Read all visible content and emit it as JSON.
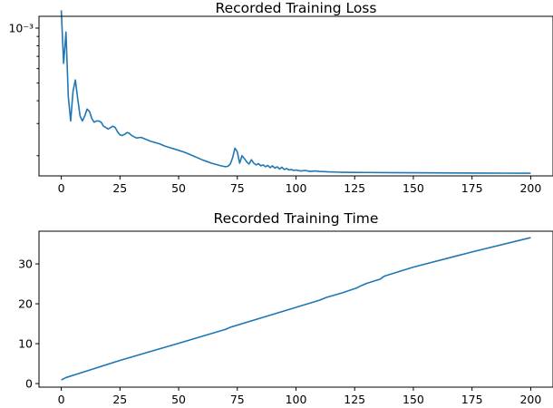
{
  "chart_data": [
    {
      "type": "line",
      "title": "Recorded Training Loss",
      "xlabel": "",
      "ylabel": "",
      "yscale": "log",
      "xlim": [
        -9.5,
        209.5
      ],
      "ylim": [
        0.000155,
        0.00116
      ],
      "grid": false,
      "color": "#1f77b4",
      "x_ticks": [
        0,
        25,
        50,
        75,
        100,
        125,
        150,
        175,
        200
      ],
      "x_tick_labels": [
        "0",
        "25",
        "50",
        "75",
        "100",
        "125",
        "150",
        "175",
        "200"
      ],
      "y_major_ticks": [
        0.001
      ],
      "y_major_tick_labels": [
        "10⁻³"
      ],
      "y_minor_ticks": [
        0.0002,
        0.0003,
        0.0004,
        0.0005,
        0.0006,
        0.0007,
        0.0008,
        0.0009
      ],
      "series": [
        {
          "x": [
            0,
            1,
            2,
            3,
            4,
            5,
            6,
            7,
            8,
            9,
            10,
            11,
            12,
            13,
            14,
            15,
            16,
            17,
            18,
            19,
            20,
            21,
            22,
            23,
            24,
            25,
            26,
            27,
            28,
            29,
            30,
            32,
            34,
            36,
            38,
            40,
            42,
            44,
            46,
            48,
            50,
            52,
            54,
            56,
            58,
            60,
            62,
            64,
            66,
            68,
            70,
            71,
            72,
            73,
            74,
            75,
            76,
            77,
            78,
            79,
            80,
            81,
            82,
            83,
            84,
            85,
            86,
            87,
            88,
            89,
            90,
            91,
            92,
            93,
            94,
            95,
            96,
            97,
            98,
            99,
            100,
            102,
            104,
            106,
            108,
            110,
            112,
            114,
            116,
            118,
            120,
            125,
            130,
            140,
            150,
            160,
            170,
            180,
            190,
            200
          ],
          "y": [
            0.00125,
            0.00064,
            0.00095,
            0.00042,
            0.00031,
            0.00045,
            0.00052,
            0.00041,
            0.00033,
            0.00031,
            0.00033,
            0.00036,
            0.00035,
            0.00032,
            0.000305,
            0.00031,
            0.00031,
            0.000305,
            0.00029,
            0.000285,
            0.00028,
            0.000285,
            0.00029,
            0.000285,
            0.00027,
            0.00026,
            0.000258,
            0.000262,
            0.000268,
            0.000265,
            0.000258,
            0.00025,
            0.000252,
            0.000246,
            0.00024,
            0.000236,
            0.000232,
            0.000226,
            0.000222,
            0.000218,
            0.000214,
            0.00021,
            0.000205,
            0.0002,
            0.000195,
            0.00019,
            0.000186,
            0.000182,
            0.000179,
            0.000176,
            0.000174,
            0.000175,
            0.00018,
            0.000195,
            0.00022,
            0.00021,
            0.000182,
            0.0002,
            0.000193,
            0.000185,
            0.00018,
            0.00019,
            0.000182,
            0.000178,
            0.000181,
            0.000176,
            0.000178,
            0.000174,
            0.000177,
            0.000172,
            0.000176,
            0.000171,
            0.000174,
            0.000169,
            0.000173,
            0.000168,
            0.00017,
            0.000167,
            0.000168,
            0.000166,
            0.000167,
            0.000165,
            0.000166,
            0.000164,
            0.000165,
            0.000164,
            0.0001635,
            0.000163,
            0.0001628,
            0.0001625,
            0.0001622,
            0.000162,
            0.0001618,
            0.0001615,
            0.0001612,
            0.000161,
            0.0001608,
            0.0001606,
            0.0001604,
            0.0001602
          ]
        }
      ]
    },
    {
      "type": "line",
      "title": "Recorded Training Time",
      "xlabel": "",
      "ylabel": "",
      "yscale": "linear",
      "xlim": [
        -9.5,
        209.5
      ],
      "ylim": [
        -0.9,
        38.2
      ],
      "grid": false,
      "color": "#1f77b4",
      "x_ticks": [
        0,
        25,
        50,
        75,
        100,
        125,
        150,
        175,
        200
      ],
      "x_tick_labels": [
        "0",
        "25",
        "50",
        "75",
        "100",
        "125",
        "150",
        "175",
        "200"
      ],
      "y_ticks": [
        0,
        10,
        20,
        30
      ],
      "y_tick_labels": [
        "0",
        "10",
        "20",
        "30"
      ],
      "series": [
        {
          "x": [
            0,
            2,
            10,
            25,
            50,
            70,
            72,
            100,
            110,
            113,
            120,
            126,
            128,
            130,
            136,
            137,
            138,
            150,
            175,
            200
          ],
          "y": [
            0.9,
            1.5,
            3.0,
            5.8,
            10.1,
            13.6,
            14.1,
            19.1,
            20.9,
            21.6,
            22.8,
            24.0,
            24.6,
            25.1,
            26.2,
            26.7,
            27.0,
            29.2,
            33.0,
            36.6
          ]
        }
      ]
    }
  ]
}
